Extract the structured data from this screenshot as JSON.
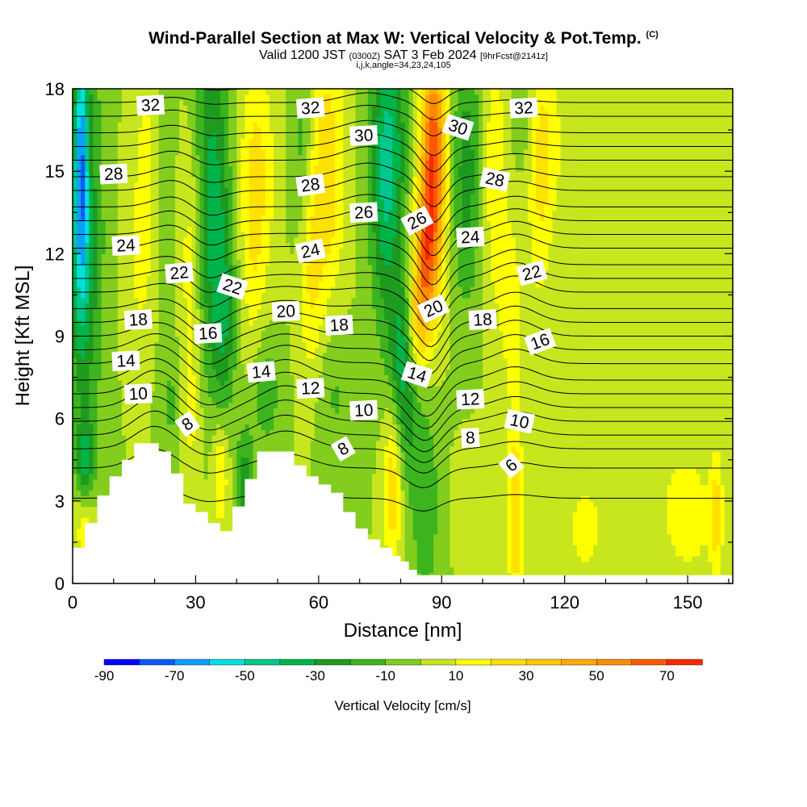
{
  "header": {
    "title_main": "Wind-Parallel Section at Max W: Vertical Velocity & Pot.Temp.",
    "title_mark": "(C)",
    "valid_prefix": "Valid 1200 JST",
    "valid_utc": "(0300Z)",
    "valid_date": "SAT 3 Feb 2024",
    "forecast": "[9hrFcst@2141z]",
    "params": "i,j,k,angle=34,23,24,105"
  },
  "chart_data": {
    "type": "heatmap",
    "xlabel": "Distance [nm]",
    "ylabel": "Height [Kft MSL]",
    "xlim": [
      0,
      161
    ],
    "ylim": [
      0,
      18
    ],
    "x_ticks": [
      0,
      30,
      60,
      90,
      120,
      150
    ],
    "y_ticks": [
      0,
      3,
      6,
      9,
      12,
      15,
      18
    ],
    "colorbar": {
      "title": "Vertical Velocity [cm/s]",
      "labels": [
        "-90",
        "-70",
        "-50",
        "-30",
        "-10",
        "10",
        "30",
        "50",
        "70"
      ],
      "bounds": [
        -90,
        80
      ],
      "step": 10,
      "colors": [
        "#0000ff",
        "#0a5aff",
        "#0aa0ff",
        "#00e0e0",
        "#00c88c",
        "#00b44b",
        "#1e9b1e",
        "#3cb41e",
        "#82cd1e",
        "#c8e61e",
        "#ffff00",
        "#ffe100",
        "#ffc800",
        "#ffaa00",
        "#ff8c00",
        "#ff5a00",
        "#ff2800",
        "#e6001e",
        "#c8003c",
        "#96006e",
        "#640096"
      ]
    },
    "terrain": [
      [
        0,
        1.3
      ],
      [
        3,
        1.3
      ],
      [
        3,
        2.2
      ],
      [
        6,
        2.2
      ],
      [
        6,
        3.2
      ],
      [
        9,
        3.2
      ],
      [
        9,
        3.9
      ],
      [
        12,
        3.9
      ],
      [
        12,
        4.5
      ],
      [
        15,
        4.5
      ],
      [
        15,
        5.1
      ],
      [
        21,
        5.1
      ],
      [
        21,
        4.8
      ],
      [
        24,
        4.8
      ],
      [
        24,
        4.0
      ],
      [
        27,
        4.0
      ],
      [
        27,
        2.9
      ],
      [
        30,
        2.9
      ],
      [
        30,
        2.6
      ],
      [
        33,
        2.6
      ],
      [
        33,
        2.2
      ],
      [
        36,
        2.2
      ],
      [
        36,
        1.9
      ],
      [
        39,
        1.9
      ],
      [
        39,
        2.8
      ],
      [
        42,
        2.8
      ],
      [
        42,
        3.8
      ],
      [
        45,
        3.8
      ],
      [
        45,
        4.8
      ],
      [
        54,
        4.8
      ],
      [
        54,
        4.3
      ],
      [
        57,
        4.3
      ],
      [
        57,
        3.9
      ],
      [
        60,
        3.9
      ],
      [
        60,
        3.6
      ],
      [
        63,
        3.6
      ],
      [
        63,
        3.3
      ],
      [
        66,
        3.3
      ],
      [
        66,
        2.6
      ],
      [
        69,
        2.6
      ],
      [
        69,
        2.0
      ],
      [
        72,
        2.0
      ],
      [
        72,
        1.6
      ],
      [
        75,
        1.6
      ],
      [
        75,
        1.3
      ],
      [
        78,
        1.3
      ],
      [
        78,
        1.0
      ],
      [
        80,
        1.0
      ],
      [
        80,
        0.8
      ],
      [
        82,
        0.8
      ],
      [
        82,
        0.5
      ],
      [
        84,
        0.5
      ],
      [
        84,
        0.3
      ],
      [
        86,
        0.3
      ],
      [
        86,
        0.3
      ],
      [
        161,
        0.3
      ]
    ],
    "field": {
      "background": 0,
      "blobs": [
        {
          "x": 2,
          "y": 15.5,
          "sx": 1.3,
          "sy": 3.5,
          "v": -55
        },
        {
          "x": 2,
          "y": 11,
          "sx": 2.2,
          "sy": 3.5,
          "v": -25
        },
        {
          "x": 5,
          "y": 13,
          "sx": 2.5,
          "sy": 6,
          "v": -15
        },
        {
          "x": 3,
          "y": 4.5,
          "sx": 1.5,
          "sy": 1,
          "v": -30
        },
        {
          "x": 3,
          "y": 2,
          "sx": 1.8,
          "sy": 1,
          "v": 18
        },
        {
          "x": 18,
          "y": 15,
          "sx": 2.5,
          "sy": 3,
          "v": 14
        },
        {
          "x": 16,
          "y": 11,
          "sx": 2.5,
          "sy": 2,
          "v": 8
        },
        {
          "x": 22,
          "y": 14,
          "sx": 2,
          "sy": 3,
          "v": -8
        },
        {
          "x": 34,
          "y": 14,
          "sx": 3,
          "sy": 4.5,
          "v": -35
        },
        {
          "x": 37,
          "y": 9.5,
          "sx": 2,
          "sy": 2.5,
          "v": -22
        },
        {
          "x": 29,
          "y": 12,
          "sx": 2,
          "sy": 3,
          "v": 18
        },
        {
          "x": 29,
          "y": 6,
          "sx": 1.8,
          "sy": 2,
          "v": 12
        },
        {
          "x": 24,
          "y": 6.5,
          "sx": 1.8,
          "sy": 1.5,
          "v": -12
        },
        {
          "x": 36,
          "y": 4,
          "sx": 1.5,
          "sy": 1.5,
          "v": 22
        },
        {
          "x": 42,
          "y": 3.5,
          "sx": 1.5,
          "sy": 1.5,
          "v": -28
        },
        {
          "x": 45,
          "y": 15,
          "sx": 3,
          "sy": 3,
          "v": 22
        },
        {
          "x": 44,
          "y": 11,
          "sx": 2,
          "sy": 3,
          "v": 10
        },
        {
          "x": 47,
          "y": 7,
          "sx": 2.5,
          "sy": 1.5,
          "v": -18
        },
        {
          "x": 56,
          "y": 16,
          "sx": 2,
          "sy": 2.5,
          "v": -15
        },
        {
          "x": 62,
          "y": 15,
          "sx": 3,
          "sy": 3.5,
          "v": 28
        },
        {
          "x": 58,
          "y": 11,
          "sx": 2,
          "sy": 2.5,
          "v": 18
        },
        {
          "x": 64,
          "y": 7,
          "sx": 3,
          "sy": 2,
          "v": -12
        },
        {
          "x": 77,
          "y": 16,
          "sx": 3,
          "sy": 3,
          "v": -40
        },
        {
          "x": 76,
          "y": 12,
          "sx": 2.5,
          "sy": 3,
          "v": -15
        },
        {
          "x": 80,
          "y": 8.5,
          "sx": 2,
          "sy": 2,
          "v": -28
        },
        {
          "x": 82,
          "y": 6,
          "sx": 2,
          "sy": 1.8,
          "v": -15
        },
        {
          "x": 88,
          "y": 15.5,
          "sx": 2.2,
          "sy": 3,
          "v": 68
        },
        {
          "x": 86,
          "y": 11.5,
          "sx": 2,
          "sy": 2,
          "v": 45
        },
        {
          "x": 84,
          "y": 9.5,
          "sx": 1.5,
          "sy": 1.5,
          "v": 22
        },
        {
          "x": 78,
          "y": 3.5,
          "sx": 1.5,
          "sy": 2,
          "v": 28
        },
        {
          "x": 86,
          "y": 3,
          "sx": 2.5,
          "sy": 2.8,
          "v": -18
        },
        {
          "x": 96,
          "y": 15,
          "sx": 2.5,
          "sy": 3.5,
          "v": -25
        },
        {
          "x": 103,
          "y": 15,
          "sx": 2,
          "sy": 3.5,
          "v": 18
        },
        {
          "x": 107,
          "y": 10,
          "sx": 2,
          "sy": 2.5,
          "v": 15
        },
        {
          "x": 110,
          "y": 17,
          "sx": 2,
          "sy": 1.5,
          "v": -10
        },
        {
          "x": 114,
          "y": 15,
          "sx": 2.2,
          "sy": 3.5,
          "v": 20
        },
        {
          "x": 108,
          "y": 2.5,
          "sx": 1.2,
          "sy": 2.5,
          "v": 32
        },
        {
          "x": 98,
          "y": 3,
          "sx": 3,
          "sy": 1.5,
          "v": 8
        },
        {
          "x": 125,
          "y": 2,
          "sx": 5,
          "sy": 2,
          "v": 12
        },
        {
          "x": 140,
          "y": 9,
          "sx": 6,
          "sy": 3,
          "v": 6
        },
        {
          "x": 150,
          "y": 2.5,
          "sx": 6,
          "sy": 2,
          "v": 14
        },
        {
          "x": 157,
          "y": 2.5,
          "sx": 1,
          "sy": 1.5,
          "v": 22
        },
        {
          "x": 117,
          "y": 16,
          "sx": 3,
          "sy": 2,
          "v": 10
        }
      ]
    },
    "isentropes": {
      "start": 6,
      "end": 33,
      "step": 1,
      "base_levels_kft": [
        3.1,
        4.2,
        4.9,
        5.4,
        5.9,
        6.4,
        6.9,
        7.4,
        8.0,
        8.5,
        9.0,
        9.5,
        10.0,
        10.6,
        11.1,
        11.6,
        12.2,
        12.7,
        13.2,
        13.7,
        14.3,
        14.8,
        15.4,
        15.9,
        16.4,
        17.0,
        17.5,
        18.0
      ],
      "perturbations": [
        {
          "x": 20,
          "y": 6,
          "sx": 5,
          "sy": 2.5,
          "dz": 0.9
        },
        {
          "x": 33,
          "y": 10,
          "sx": 4,
          "sy": 4,
          "dz": -0.6
        },
        {
          "x": 52,
          "y": 6.5,
          "sx": 6,
          "sy": 2.5,
          "dz": 0.8
        },
        {
          "x": 85,
          "y": 7,
          "sx": 4,
          "sy": 3,
          "dz": -1.0
        },
        {
          "x": 88,
          "y": 13,
          "sx": 3,
          "sy": 4,
          "dz": -1.2
        },
        {
          "x": 108,
          "y": 10,
          "sx": 5,
          "sy": 4,
          "dz": 0.6
        },
        {
          "x": 25,
          "y": 14,
          "sx": 5,
          "sy": 3,
          "dz": 0.4
        },
        {
          "x": 72,
          "y": 15,
          "sx": 6,
          "sy": 3,
          "dz": 0.5
        }
      ]
    },
    "contour_labels": [
      {
        "text": "32",
        "x": 19,
        "y": 17.4,
        "angle": -3
      },
      {
        "text": "32",
        "x": 58,
        "y": 17.3,
        "angle": -4
      },
      {
        "text": "32",
        "x": 110,
        "y": 17.3,
        "angle": -3
      },
      {
        "text": "30",
        "x": 71,
        "y": 16.3,
        "angle": -3
      },
      {
        "text": "30",
        "x": 94,
        "y": 16.6,
        "angle": 18
      },
      {
        "text": "28",
        "x": 10,
        "y": 14.9,
        "angle": -3
      },
      {
        "text": "28",
        "x": 58,
        "y": 14.5,
        "angle": -8
      },
      {
        "text": "28",
        "x": 103,
        "y": 14.7,
        "angle": 12
      },
      {
        "text": "26",
        "x": 71,
        "y": 13.5,
        "angle": -3
      },
      {
        "text": "26",
        "x": 84,
        "y": 13.2,
        "angle": -28
      },
      {
        "text": "24",
        "x": 13,
        "y": 12.3,
        "angle": -3
      },
      {
        "text": "24",
        "x": 58,
        "y": 12.1,
        "angle": -12
      },
      {
        "text": "24",
        "x": 97,
        "y": 12.6,
        "angle": -3
      },
      {
        "text": "22",
        "x": 26,
        "y": 11.3,
        "angle": -5
      },
      {
        "text": "22",
        "x": 39,
        "y": 10.8,
        "angle": 18
      },
      {
        "text": "22",
        "x": 112,
        "y": 11.3,
        "angle": -15
      },
      {
        "text": "20",
        "x": 52,
        "y": 9.9,
        "angle": -3
      },
      {
        "text": "20",
        "x": 88,
        "y": 10.0,
        "angle": -25
      },
      {
        "text": "18",
        "x": 16,
        "y": 9.6,
        "angle": -3
      },
      {
        "text": "18",
        "x": 65,
        "y": 9.4,
        "angle": -3
      },
      {
        "text": "18",
        "x": 100,
        "y": 9.6,
        "angle": -3
      },
      {
        "text": "16",
        "x": 33,
        "y": 9.1,
        "angle": -3
      },
      {
        "text": "16",
        "x": 114,
        "y": 8.8,
        "angle": -20
      },
      {
        "text": "14",
        "x": 13,
        "y": 8.1,
        "angle": -3
      },
      {
        "text": "14",
        "x": 46,
        "y": 7.7,
        "angle": -5
      },
      {
        "text": "14",
        "x": 84,
        "y": 7.6,
        "angle": 18
      },
      {
        "text": "12",
        "x": 58,
        "y": 7.1,
        "angle": -3
      },
      {
        "text": "12",
        "x": 97,
        "y": 6.7,
        "angle": -3
      },
      {
        "text": "10",
        "x": 16,
        "y": 6.9,
        "angle": -3
      },
      {
        "text": "10",
        "x": 71,
        "y": 6.3,
        "angle": -3
      },
      {
        "text": "10",
        "x": 109,
        "y": 5.9,
        "angle": 12
      },
      {
        "text": "8",
        "x": 28,
        "y": 5.8,
        "angle": -35
      },
      {
        "text": "8",
        "x": 66,
        "y": 4.9,
        "angle": -30
      },
      {
        "text": "8",
        "x": 97,
        "y": 5.3,
        "angle": -3
      },
      {
        "text": "6",
        "x": 107,
        "y": 4.3,
        "angle": -40
      }
    ]
  }
}
